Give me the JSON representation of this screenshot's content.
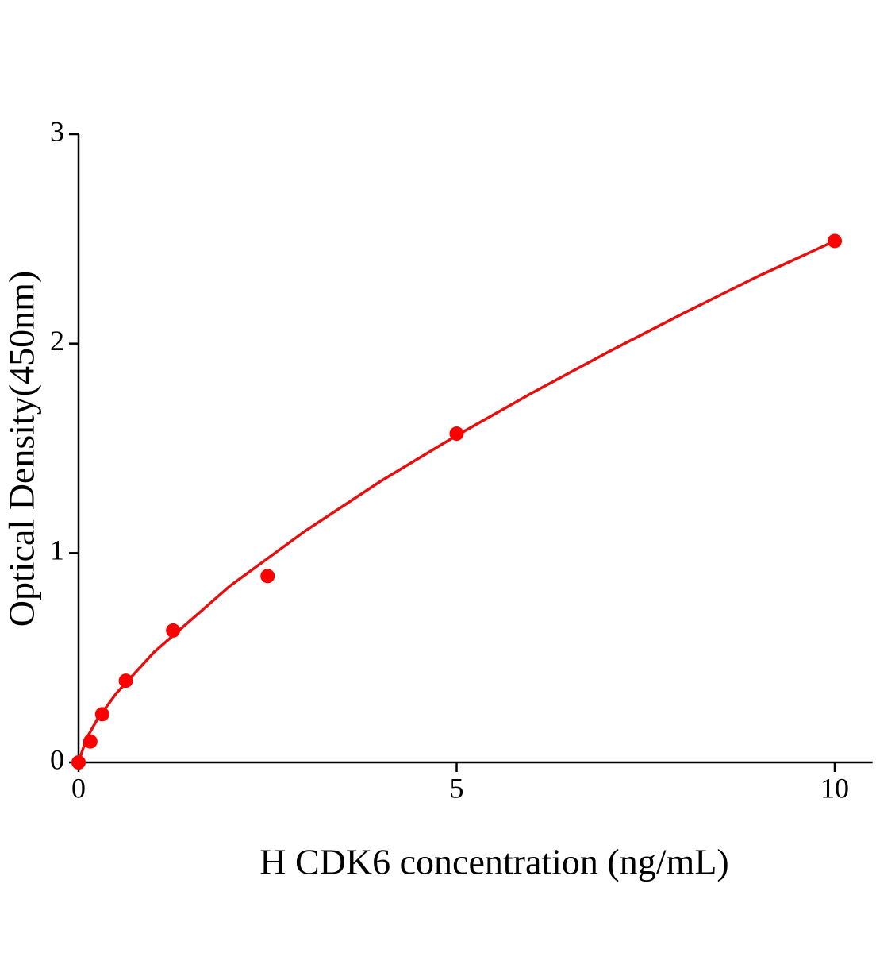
{
  "chart_data": {
    "type": "scatter",
    "x_label": "H CDK6 concentration (ng/mL)",
    "y_label": "Optical Density(450nm)",
    "x": [
      0,
      0.156,
      0.3125,
      0.625,
      1.25,
      2.5,
      5,
      10
    ],
    "values": [
      0,
      0.1,
      0.23,
      0.39,
      0.63,
      0.89,
      1.57,
      2.49
    ],
    "color": "#ff0000",
    "fit": {
      "x": [
        0,
        0.1,
        0.25,
        0.5,
        1,
        2,
        3,
        4,
        5,
        6,
        7,
        8,
        9,
        10
      ],
      "values": [
        0,
        0.111,
        0.207,
        0.33,
        0.527,
        0.842,
        1.106,
        1.344,
        1.561,
        1.765,
        1.959,
        2.145,
        2.324,
        2.49
      ],
      "color": "#e60f0f"
    },
    "xlim": [
      0,
      10.5
    ],
    "ylim": [
      0,
      3
    ],
    "xticks": [
      0,
      5,
      10
    ],
    "yticks": [
      0,
      1,
      2,
      3
    ],
    "grid": false
  }
}
